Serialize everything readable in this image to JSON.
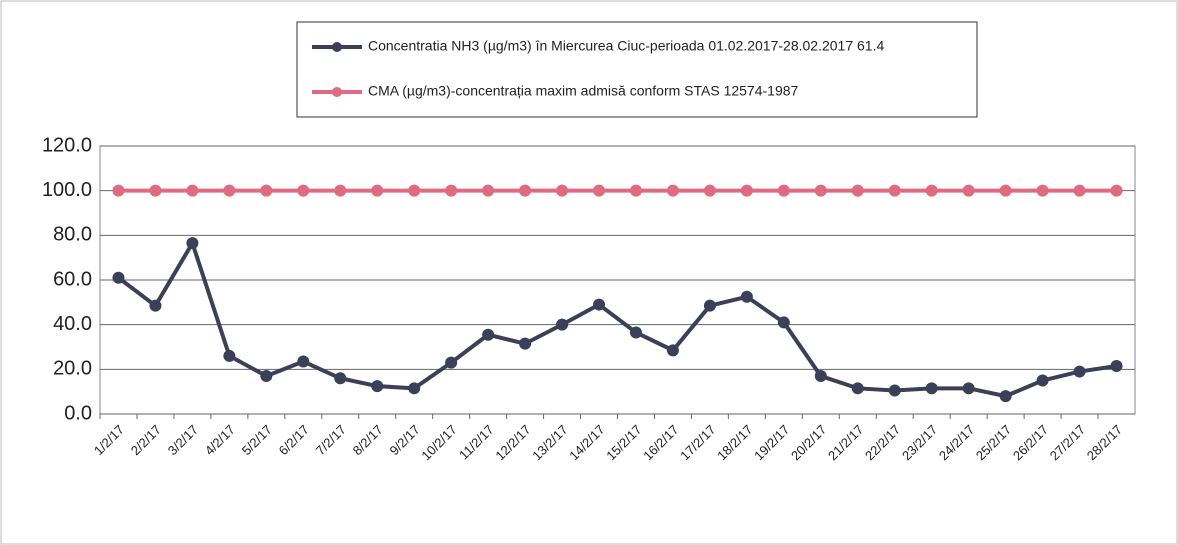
{
  "chart_data": {
    "type": "line",
    "categories": [
      "1/2/17",
      "2/2/17",
      "3/2/17",
      "4/2/17",
      "5/2/17",
      "6/2/17",
      "7/2/17",
      "8/2/17",
      "9/2/17",
      "10/2/17",
      "11/2/17",
      "12/2/17",
      "13/2/17",
      "14/2/17",
      "15/2/17",
      "16/2/17",
      "17/2/17",
      "18/2/17",
      "19/2/17",
      "20/2/17",
      "21/2/17",
      "22/2/17",
      "23/2/17",
      "24/2/17",
      "25/2/17",
      "26/2/17",
      "27/2/17",
      "28/2/17"
    ],
    "series": [
      {
        "name": "Concentratia NH3 (µg/m3) în Miercurea Ciuc-perioada 01.02.2017-28.02.2017 61.4",
        "color": "#3a4058",
        "values": [
          61,
          48.5,
          76.5,
          26,
          17,
          23.5,
          16,
          12.5,
          11.5,
          23,
          35.5,
          31.5,
          40,
          49,
          36.5,
          28.5,
          48.5,
          52.5,
          41,
          17,
          11.5,
          10.5,
          11.5,
          11.5,
          8,
          15,
          19,
          21.5
        ]
      },
      {
        "name": "CMA (µg/m3)-concentrația maxim admisă conform STAS 12574-1987",
        "color": "#e06a80",
        "values": [
          100,
          100,
          100,
          100,
          100,
          100,
          100,
          100,
          100,
          100,
          100,
          100,
          100,
          100,
          100,
          100,
          100,
          100,
          100,
          100,
          100,
          100,
          100,
          100,
          100,
          100,
          100,
          100
        ]
      }
    ],
    "ylim": [
      0,
      120
    ],
    "yticks": [
      {
        "value": 0,
        "label": "0.0"
      },
      {
        "value": 20,
        "label": "20.0"
      },
      {
        "value": 40,
        "label": "40.0"
      },
      {
        "value": 60,
        "label": "60.0"
      },
      {
        "value": 80,
        "label": "80.0"
      },
      {
        "value": 100,
        "label": "100.0"
      },
      {
        "value": 120,
        "label": "120.0"
      }
    ],
    "grid": true,
    "legend": "top"
  }
}
